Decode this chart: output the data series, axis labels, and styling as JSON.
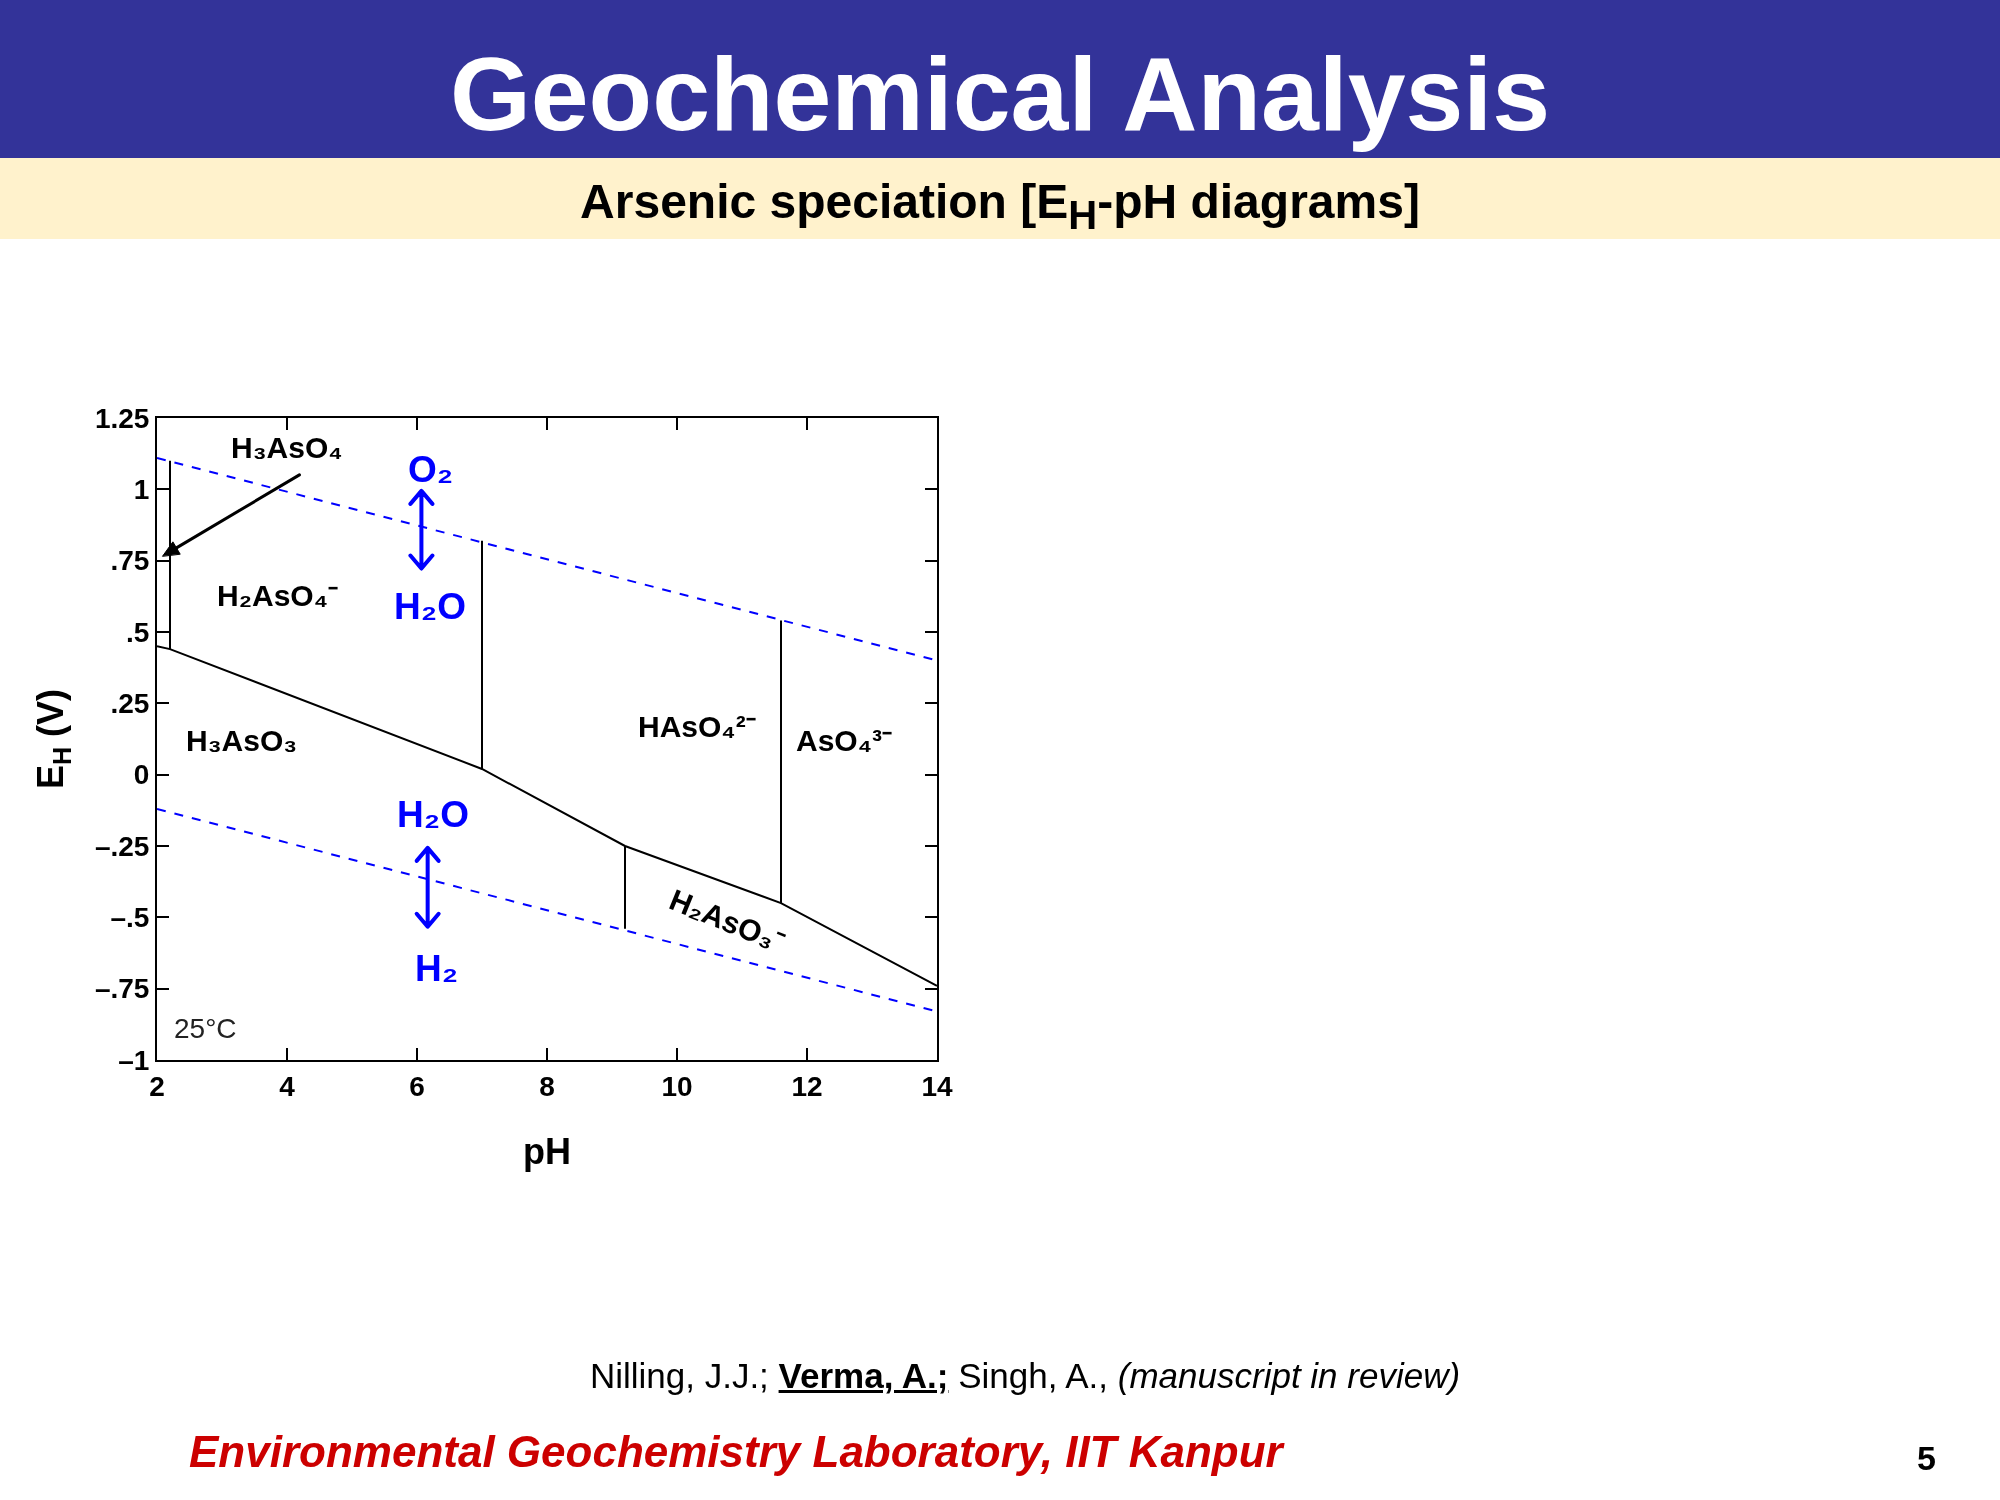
{
  "chart_data": {
    "type": "line",
    "title": "Geochemical Analysis",
    "subtitle": "Arsenic speciation [E$_{H}$-pH diagrams]",
    "xlabel": "pH",
    "ylabel": "E$_{H}$ (V)",
    "xlim": [
      2,
      14
    ],
    "xticks": [
      2,
      4,
      6,
      8,
      10,
      12,
      14
    ],
    "ylim": [
      -1,
      1.25
    ],
    "yticks": [
      {
        "value": -1,
        "label": "–1"
      },
      {
        "value": -0.75,
        "label": "–.75"
      },
      {
        "value": -0.5,
        "label": "–.5"
      },
      {
        "value": -0.25,
        "label": "–.25"
      },
      0,
      {
        "value": 0.25,
        "label": ".25"
      },
      {
        "value": 0.5,
        "label": ".5"
      },
      {
        "value": 0.75,
        "label": ".75"
      },
      1,
      1.25
    ],
    "line_style": "solid",
    "series": [
      {
        "color": "#0000ff",
        "line_style": "dashed",
        "x": [
          2,
          14
        ],
        "values": [
          1.11,
          0.4
        ]
      },
      {
        "color": "#0000ff",
        "line_style": "dashed",
        "x": [
          2,
          14
        ],
        "values": [
          -0.12,
          -0.83
        ]
      },
      {
        "color": "#000000",
        "x": [
          2,
          2.2,
          7,
          9.2,
          11.6,
          14
        ],
        "values": [
          0.45,
          0.44,
          0.02,
          -0.25,
          -0.45,
          -0.74
        ]
      },
      {
        "color": "#000000",
        "x": [
          2.2,
          2.2
        ],
        "values": [
          0.44,
          1.1
        ]
      },
      {
        "color": "#000000",
        "x": [
          7,
          7
        ],
        "values": [
          0.02,
          0.82
        ]
      },
      {
        "color": "#000000",
        "x": [
          9.2,
          9.2
        ],
        "values": [
          -0.25,
          -0.54
        ]
      },
      {
        "color": "#000000",
        "x": [
          11.6,
          11.6
        ],
        "values": [
          -0.45,
          0.54
        ]
      }
    ],
    "annotations": [
      "H₃AsO₄",
      "H₂AsO₄⁻",
      "H₃AsO₃",
      "HAsO₄²⁻",
      "AsO₄³⁻",
      "H₂AsO₃⁻",
      "O₂",
      "H₂O",
      "H₂O",
      "H₂",
      "25°C",
      "Nilling, J.J.;",
      "Verma, A.;",
      "Singh, A.,",
      "(manuscript in review)",
      "Environmental Geochemistry Laboratory, IIT Kanpur",
      "5"
    ]
  }
}
